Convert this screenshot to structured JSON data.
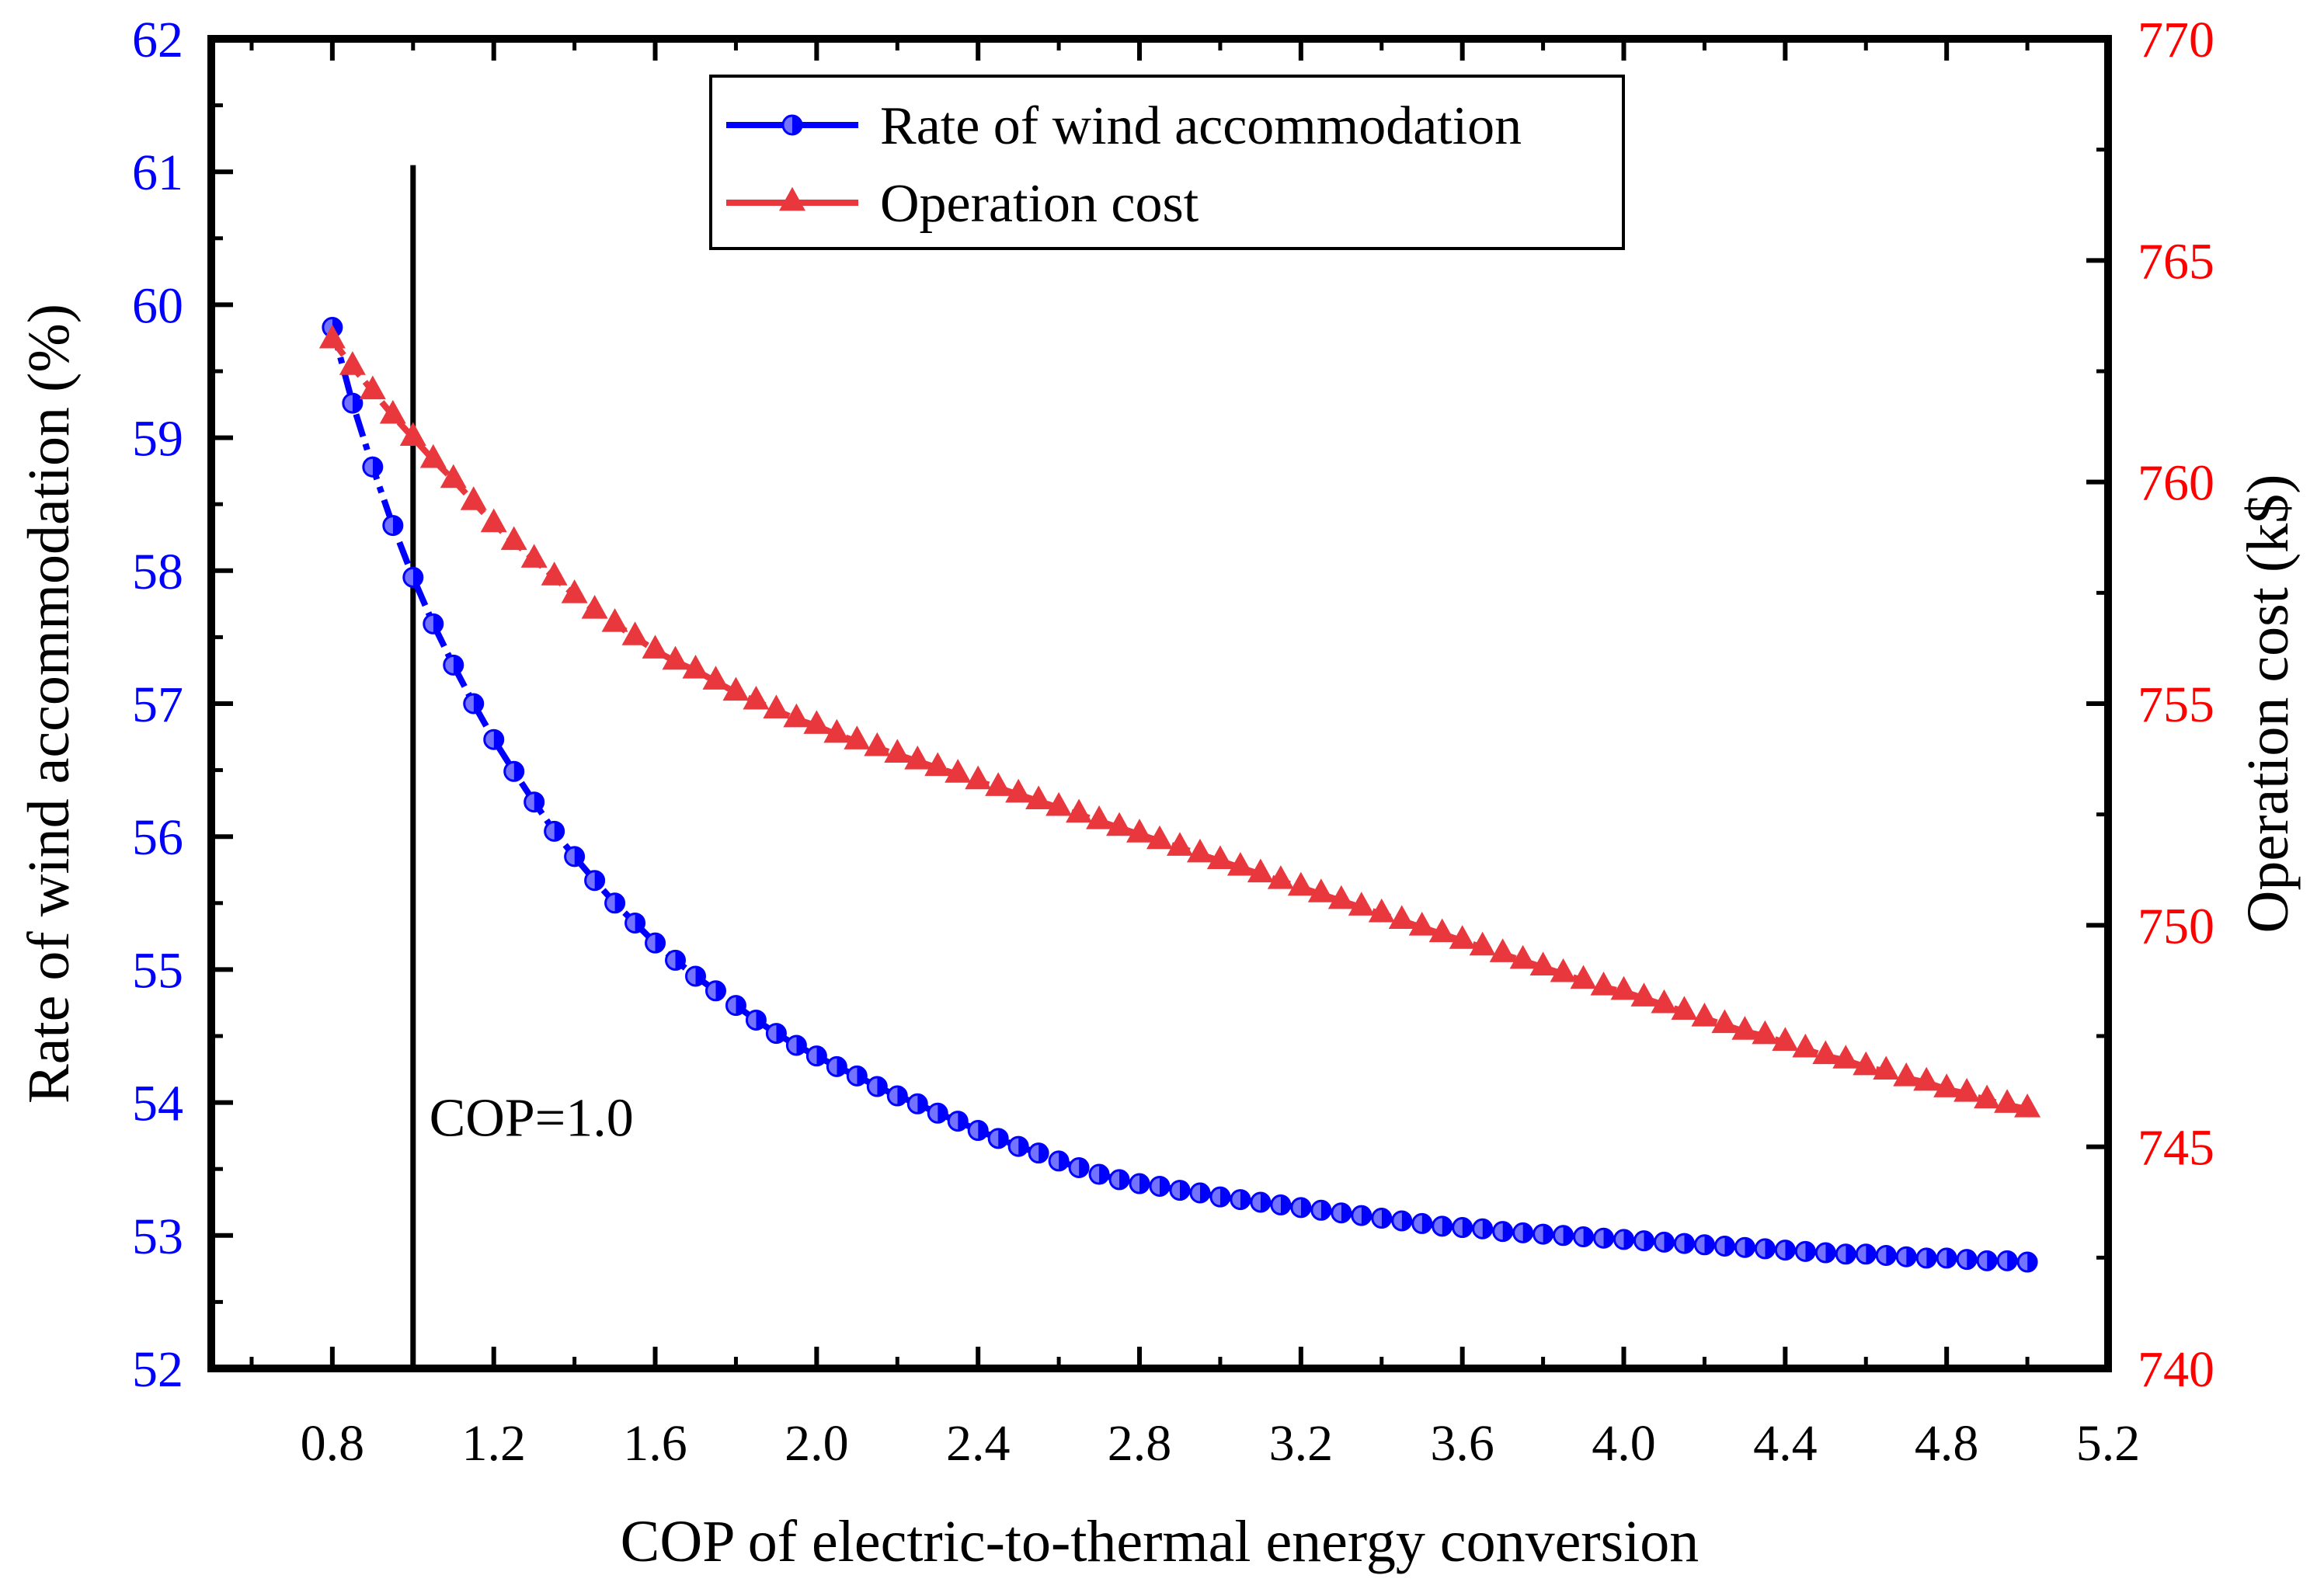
{
  "chart_data": {
    "type": "line",
    "xlabel": "COP of electric-to-thermal energy conversion",
    "xlim": [
      0.5,
      5.2
    ],
    "xticks": [
      "0.8",
      "1.2",
      "1.6",
      "2.0",
      "2.4",
      "2.8",
      "3.2",
      "3.6",
      "4.0",
      "4.4",
      "4.8",
      "5.2"
    ],
    "y_left": {
      "label": "Rate of wind accommodation (%)",
      "lim": [
        52,
        62
      ],
      "ticks": [
        "52",
        "53",
        "54",
        "55",
        "56",
        "57",
        "58",
        "59",
        "60",
        "61",
        "62"
      ],
      "color": "#0000ff"
    },
    "y_right": {
      "label": "Operation cost (k$)",
      "lim": [
        740,
        770
      ],
      "ticks": [
        "740",
        "745",
        "750",
        "755",
        "760",
        "765",
        "770"
      ],
      "color": "#ff0000"
    },
    "legend_position": "top-center",
    "series": [
      {
        "name": "Rate of wind accommodation",
        "axis": "left",
        "color": "#0000ff",
        "marker": "half-filled-circle",
        "x": [
          0.8,
          0.85,
          0.9,
          0.95,
          1.0,
          1.05,
          1.1,
          1.15,
          1.2,
          1.25,
          1.3,
          1.35,
          1.4,
          1.45,
          1.5,
          1.55,
          1.6,
          1.65,
          1.7,
          1.75,
          1.8,
          1.85,
          1.9,
          1.95,
          2.0,
          2.05,
          2.1,
          2.15,
          2.2,
          2.25,
          2.3,
          2.35,
          2.4,
          2.45,
          2.5,
          2.55,
          2.6,
          2.65,
          2.7,
          2.75,
          2.8,
          2.85,
          2.9,
          2.95,
          3.0,
          3.05,
          3.1,
          3.15,
          3.2,
          3.25,
          3.3,
          3.35,
          3.4,
          3.45,
          3.5,
          3.55,
          3.6,
          3.65,
          3.7,
          3.75,
          3.8,
          3.85,
          3.9,
          3.95,
          4.0,
          4.05,
          4.1,
          4.15,
          4.2,
          4.25,
          4.3,
          4.35,
          4.4,
          4.45,
          4.5,
          4.55,
          4.6,
          4.65,
          4.7,
          4.75,
          4.8,
          4.85,
          4.9,
          4.95,
          5.0
        ],
        "values": [
          59.83,
          59.26,
          58.78,
          58.34,
          57.95,
          57.6,
          57.29,
          57.0,
          56.73,
          56.49,
          56.26,
          56.04,
          55.85,
          55.67,
          55.5,
          55.35,
          55.2,
          55.07,
          54.95,
          54.84,
          54.73,
          54.62,
          54.52,
          54.43,
          54.35,
          54.27,
          54.2,
          54.12,
          54.05,
          53.99,
          53.92,
          53.86,
          53.79,
          53.73,
          53.67,
          53.62,
          53.56,
          53.51,
          53.46,
          53.42,
          53.39,
          53.37,
          53.34,
          53.32,
          53.29,
          53.27,
          53.25,
          53.23,
          53.21,
          53.19,
          53.17,
          53.15,
          53.13,
          53.11,
          53.09,
          53.07,
          53.06,
          53.05,
          53.03,
          53.02,
          53.01,
          53.0,
          52.99,
          52.98,
          52.97,
          52.96,
          52.95,
          52.94,
          52.93,
          52.92,
          52.91,
          52.9,
          52.89,
          52.88,
          52.87,
          52.86,
          52.86,
          52.85,
          52.84,
          52.83,
          52.83,
          52.82,
          52.81,
          52.81,
          52.8
        ]
      },
      {
        "name": "Operation cost",
        "axis": "right",
        "color": "#e8383d",
        "marker": "triangle",
        "x": [
          0.8,
          0.85,
          0.9,
          0.95,
          1.0,
          1.05,
          1.1,
          1.15,
          1.2,
          1.25,
          1.3,
          1.35,
          1.4,
          1.45,
          1.5,
          1.55,
          1.6,
          1.65,
          1.7,
          1.75,
          1.8,
          1.85,
          1.9,
          1.95,
          2.0,
          2.05,
          2.1,
          2.15,
          2.2,
          2.25,
          2.3,
          2.35,
          2.4,
          2.45,
          2.5,
          2.55,
          2.6,
          2.65,
          2.7,
          2.75,
          2.8,
          2.85,
          2.9,
          2.95,
          3.0,
          3.05,
          3.1,
          3.15,
          3.2,
          3.25,
          3.3,
          3.35,
          3.4,
          3.45,
          3.5,
          3.55,
          3.6,
          3.65,
          3.7,
          3.75,
          3.8,
          3.85,
          3.9,
          3.95,
          4.0,
          4.05,
          4.1,
          4.15,
          4.2,
          4.25,
          4.3,
          4.35,
          4.4,
          4.45,
          4.5,
          4.55,
          4.6,
          4.65,
          4.7,
          4.75,
          4.8,
          4.85,
          4.9,
          4.95,
          5.0
        ],
        "values": [
          763.2,
          762.6,
          762.05,
          761.5,
          761.0,
          760.5,
          760.05,
          759.55,
          759.05,
          758.65,
          758.25,
          757.85,
          757.45,
          757.1,
          756.8,
          756.5,
          756.2,
          755.95,
          755.75,
          755.5,
          755.25,
          755.05,
          754.85,
          754.65,
          754.5,
          754.3,
          754.15,
          754.0,
          753.85,
          753.7,
          753.55,
          753.4,
          753.25,
          753.1,
          752.95,
          752.8,
          752.65,
          752.5,
          752.35,
          752.2,
          752.05,
          751.9,
          751.75,
          751.6,
          751.45,
          751.3,
          751.15,
          751.0,
          750.85,
          750.7,
          750.55,
          750.4,
          750.25,
          750.1,
          749.95,
          749.8,
          749.65,
          749.5,
          749.35,
          749.2,
          749.05,
          748.9,
          748.75,
          748.6,
          748.5,
          748.35,
          748.2,
          748.05,
          747.9,
          747.75,
          747.6,
          747.5,
          747.35,
          747.2,
          747.05,
          746.95,
          746.8,
          746.7,
          746.55,
          746.45,
          746.3,
          746.2,
          746.05,
          745.95,
          745.85
        ]
      }
    ],
    "annotation": {
      "x": 1.0,
      "y_top": 61.05,
      "label": "COP=1.0",
      "label_x": 1.04,
      "label_y": 53.75
    }
  }
}
